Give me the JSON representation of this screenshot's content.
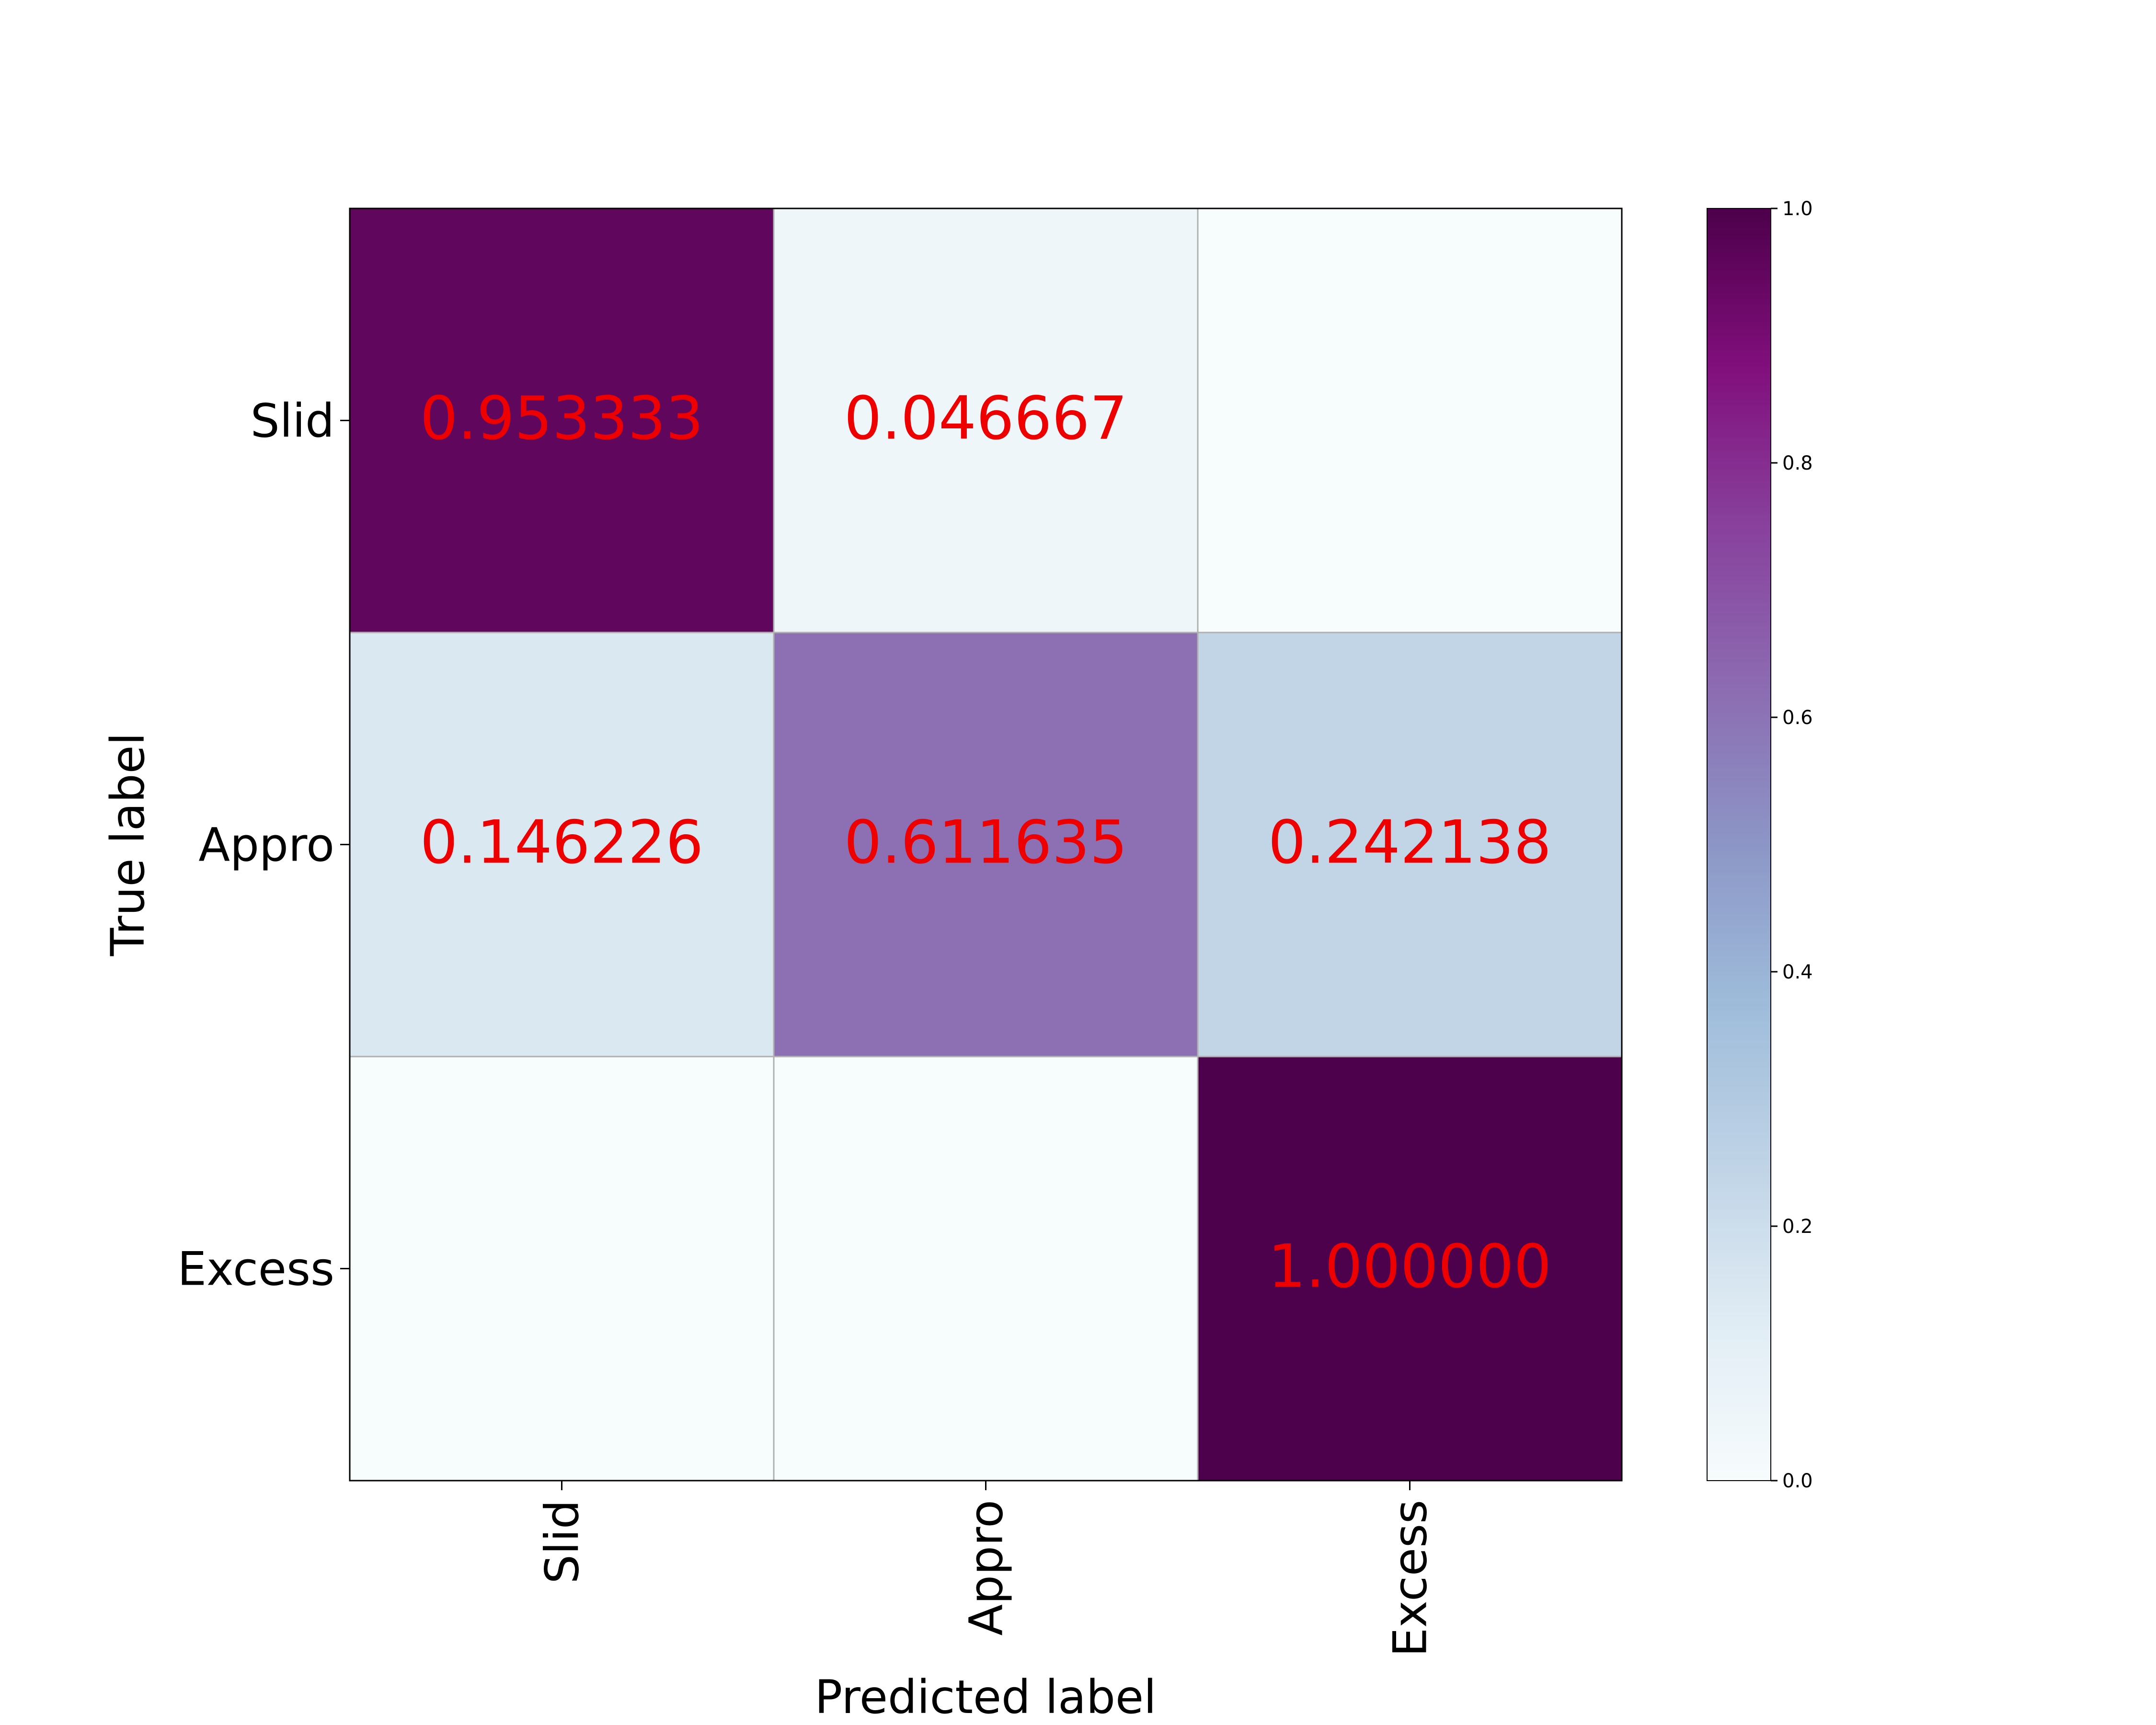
{
  "chart_data": {
    "type": "heatmap",
    "title": "",
    "xlabel": "Predicted label",
    "ylabel": "True label",
    "x_categories": [
      "Slid",
      "Appro",
      "Excess"
    ],
    "y_categories": [
      "Slid",
      "Appro",
      "Excess"
    ],
    "matrix": [
      [
        0.953333,
        0.046667,
        0.0
      ],
      [
        0.146226,
        0.611635,
        0.242138
      ],
      [
        0.0,
        0.0,
        1.0
      ]
    ],
    "cell_labels": [
      [
        "0.953333",
        "0.046667",
        ""
      ],
      [
        "0.146226",
        "0.611635",
        "0.242138"
      ],
      [
        "",
        "",
        "1.000000"
      ]
    ],
    "annotation_color": "#ee0000",
    "colormap": "BuPu",
    "colorbar": {
      "range": [
        0.0,
        1.0
      ],
      "ticks": [
        "0.0",
        "0.2",
        "0.4",
        "0.6",
        "0.8",
        "1.0"
      ]
    },
    "grid": true,
    "x_tick_rotation": "vertical"
  }
}
